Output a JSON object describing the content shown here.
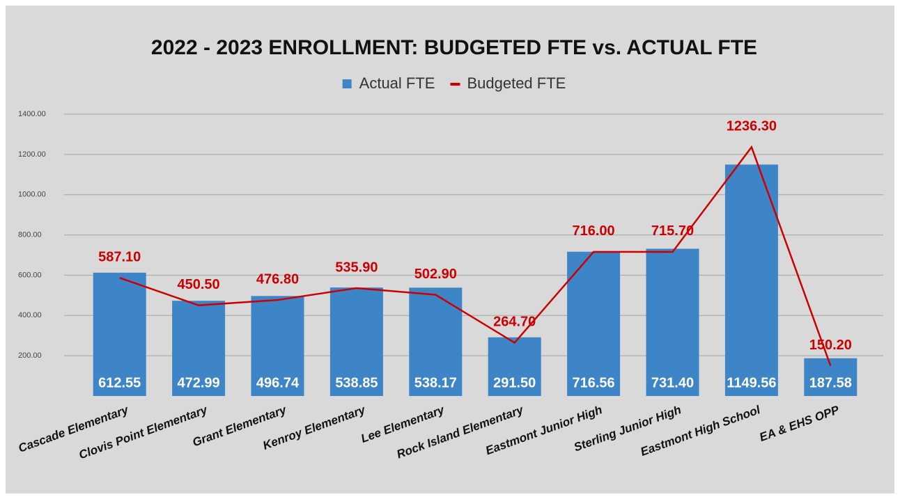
{
  "chart_data": {
    "type": "bar",
    "title": "2022 - 2023 ENROLLMENT: BUDGETED FTE vs. ACTUAL FTE",
    "categories": [
      "Cascade Elementary",
      "Clovis Point Elementary",
      "Grant Elementary",
      "Kenroy Elementary",
      "Lee Elementary",
      "Rock Island Elementary",
      "Eastmont Junior High",
      "Sterling Junior High",
      "Eastmont High School",
      "EA & EHS OPP"
    ],
    "series": [
      {
        "name": "Actual FTE",
        "type": "bar",
        "color": "#3d85c6",
        "values": [
          612.55,
          472.99,
          496.74,
          538.85,
          538.17,
          291.5,
          716.56,
          731.4,
          1149.56,
          187.58
        ],
        "value_labels": [
          "612.55",
          "472.99",
          "496.74",
          "538.85",
          "538.17",
          "291.50",
          "716.56",
          "731.40",
          "1149.56",
          "187.58"
        ]
      },
      {
        "name": "Budgeted FTE",
        "type": "line",
        "color": "#cc0000",
        "values": [
          587.1,
          450.5,
          476.8,
          535.9,
          502.9,
          264.7,
          716,
          715.7,
          1236.3,
          150.2
        ],
        "value_labels": [
          "587.10",
          "450.50",
          "476.80",
          "535.90",
          "502.90",
          "264.70",
          "716.00",
          "715.70",
          "1236.30",
          "150.20"
        ]
      }
    ],
    "ylim": [
      0,
      1400
    ],
    "yticks": [
      {
        "value": 200,
        "label": "200.00"
      },
      {
        "value": 400,
        "label": "400.00"
      },
      {
        "value": 600,
        "label": "600.00"
      },
      {
        "value": 800,
        "label": "800.00"
      },
      {
        "value": 1000,
        "label": "1000.00"
      },
      {
        "value": 1200,
        "label": "1200.00"
      },
      {
        "value": 1400,
        "label": "1400.00"
      }
    ],
    "grid": true,
    "legend": "top"
  }
}
